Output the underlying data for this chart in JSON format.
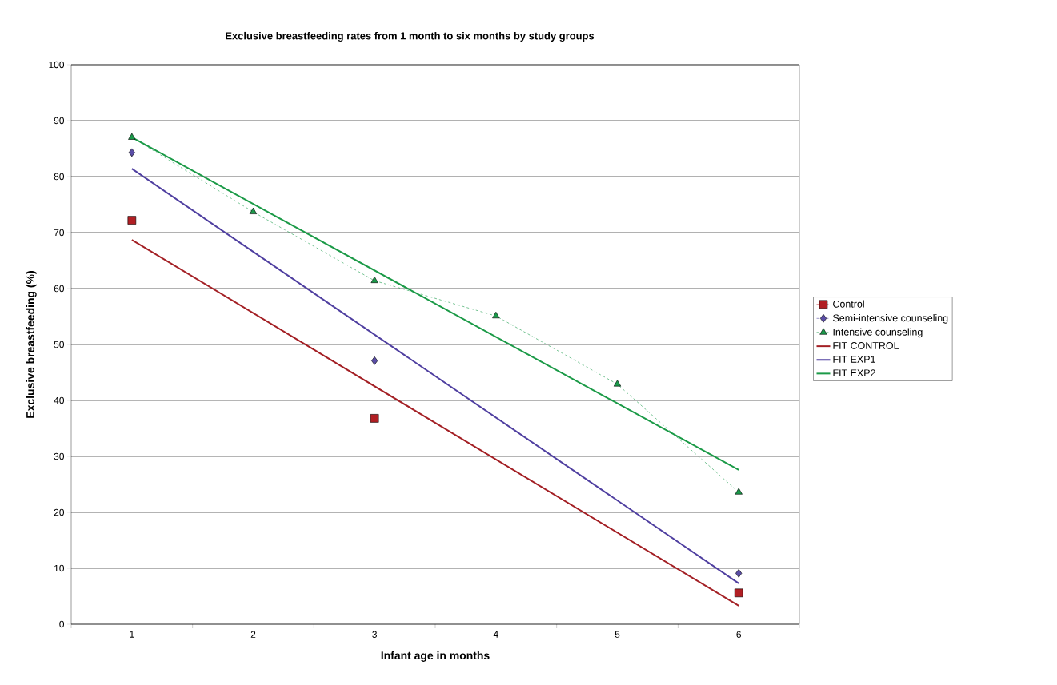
{
  "chart_data": {
    "type": "line",
    "title": "Exclusive breastfeeding rates from 1 month to six months by study groups",
    "xlabel": "Infant age in months",
    "ylabel": "Exclusive breastfeeding (%)",
    "categories": [
      "1",
      "2",
      "3",
      "4",
      "5",
      "6"
    ],
    "ylim": [
      0,
      100
    ],
    "yticks": [
      0,
      10,
      20,
      30,
      40,
      50,
      60,
      70,
      80,
      90,
      100
    ],
    "grid": "y",
    "legend": "right",
    "series": [
      {
        "name": "Control",
        "line_style": "dashed",
        "marker": "square",
        "color": "#b11f24",
        "values": [
          72.2,
          null,
          36.8,
          null,
          null,
          5.6
        ]
      },
      {
        "name": "Semi-intensive counseling",
        "line_style": "dashed",
        "marker": "diamond",
        "color": "#5a4da6",
        "values": [
          84.3,
          null,
          47.1,
          null,
          null,
          9.1
        ]
      },
      {
        "name": "Intensive counseling",
        "line_style": "dashed",
        "marker": "triangle",
        "color": "#1a9a4a",
        "values": [
          87.0,
          73.7,
          61.4,
          55.1,
          42.9,
          23.6
        ]
      },
      {
        "name": "FIT CONTROL",
        "line_style": "solid",
        "marker": "none",
        "color": "#a31f24",
        "x": [
          "1",
          "6"
        ],
        "values": [
          68.7,
          3.3
        ]
      },
      {
        "name": "FIT EXP1",
        "line_style": "solid",
        "marker": "none",
        "color": "#4f3fa0",
        "x": [
          "1",
          "6"
        ],
        "values": [
          81.4,
          7.3
        ]
      },
      {
        "name": "FIT EXP2",
        "line_style": "solid",
        "marker": "none",
        "color": "#1b9a47",
        "x": [
          "1",
          "6"
        ],
        "values": [
          87.0,
          27.6
        ]
      }
    ]
  }
}
